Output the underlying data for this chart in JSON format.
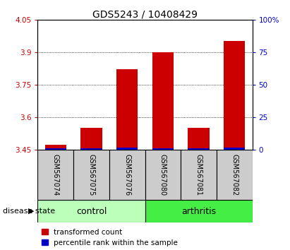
{
  "title": "GDS5243 / 10408429",
  "categories": [
    "GSM567074",
    "GSM567075",
    "GSM567076",
    "GSM567080",
    "GSM567081",
    "GSM567082"
  ],
  "red_values": [
    3.473,
    3.553,
    3.822,
    3.902,
    3.553,
    3.952
  ],
  "blue_values": [
    3.458,
    3.458,
    3.462,
    3.458,
    3.458,
    3.462
  ],
  "ymin": 3.45,
  "ymax": 4.05,
  "yticks_left": [
    3.45,
    3.6,
    3.75,
    3.9,
    4.05
  ],
  "yticks_right_vals": [
    0,
    25,
    50,
    75,
    100
  ],
  "yticks_right_labels": [
    "0",
    "25",
    "50",
    "75",
    "100%"
  ],
  "red_color": "#cc0000",
  "blue_color": "#0000cc",
  "bar_width": 0.6,
  "control_indices": [
    0,
    1,
    2
  ],
  "arthritis_indices": [
    3,
    4,
    5
  ],
  "control_color": "#bbffbb",
  "arthritis_color": "#44ee44",
  "label_bg_color": "#cccccc",
  "legend_red": "transformed count",
  "legend_blue": "percentile rank within the sample",
  "disease_state_label": "disease state",
  "control_label": "control",
  "arthritis_label": "arthritis",
  "title_fontsize": 10,
  "tick_fontsize": 7.5,
  "legend_fontsize": 7.5
}
